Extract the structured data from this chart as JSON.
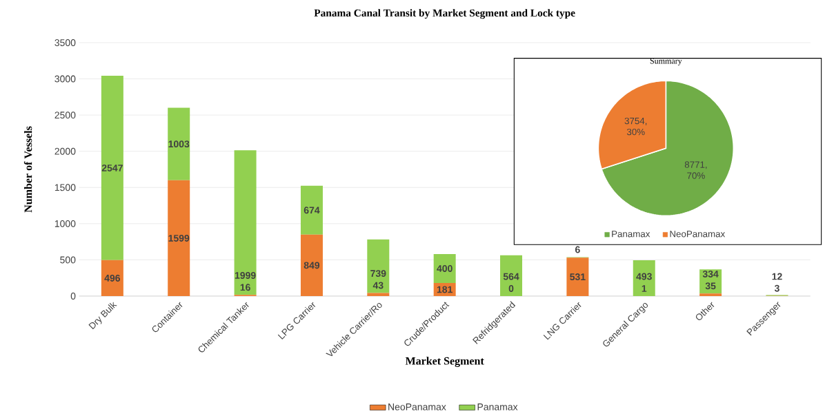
{
  "chart_data": [
    {
      "type": "bar",
      "title": "Panama Canal Transit by Market Segment and Lock type",
      "xlabel": "Market Segment",
      "ylabel": "Number of Vessels",
      "categories": [
        "Dry Bulk",
        "Container",
        "Chemical Tanker",
        "LPG Carrier",
        "Vehicle Carrier/Ro",
        "Crude/Product",
        "Refridgerated",
        "LNG Carrier",
        "General Cargo",
        "Other",
        "Passenger"
      ],
      "series": [
        {
          "name": "NeoPanamax",
          "color": "#ed7d31",
          "values": [
            496,
            1599,
            16,
            849,
            43,
            181,
            0,
            531,
            1,
            35,
            3
          ]
        },
        {
          "name": "Panamax",
          "color": "#92d050",
          "values": [
            2547,
            1003,
            1999,
            674,
            739,
            400,
            564,
            6,
            493,
            334,
            12
          ]
        }
      ],
      "stacked": true,
      "ylim": [
        0,
        3500
      ],
      "yticks": [
        0,
        500,
        1000,
        1500,
        2000,
        2500,
        3000,
        3500
      ],
      "grid": "y",
      "legend": "bottom",
      "data_labels": true
    },
    {
      "type": "pie",
      "title": "Summary",
      "categories": [
        "Panamax",
        "NeoPanamax"
      ],
      "values": [
        8771,
        3754
      ],
      "colors": [
        "#70ad47",
        "#ed7d31"
      ],
      "value_labels": [
        "8771, 70%",
        "3754, 30%"
      ],
      "legend": "bottom"
    }
  ]
}
